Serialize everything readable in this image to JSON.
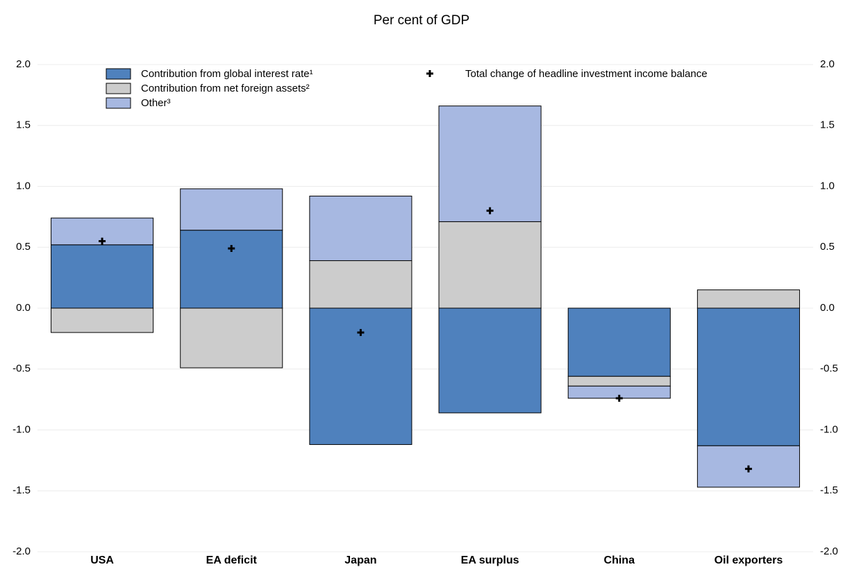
{
  "chart_data": {
    "type": "bar",
    "stacked": true,
    "subtitle": "Per cent of GDP",
    "categories": [
      "USA",
      "EA deficit",
      "Japan",
      "EA surplus",
      "China",
      "Oil exporters"
    ],
    "series": [
      {
        "name": "Contribution from global interest rate¹",
        "color": "#4f81bd",
        "values": [
          0.52,
          0.64,
          -1.12,
          -0.86,
          -0.56,
          -1.13
        ]
      },
      {
        "name": "Contribution from net foreign assets²",
        "color": "#cccccc",
        "values": [
          -0.2,
          -0.49,
          0.39,
          0.71,
          -0.08,
          0.15
        ]
      },
      {
        "name": "Other³",
        "color": "#a7b8e1",
        "values": [
          0.22,
          0.34,
          0.53,
          0.95,
          -0.1,
          -0.34
        ]
      },
      {
        "name": "Total change of headline investment income balance",
        "color": "#000000",
        "mark": "cross",
        "values": [
          0.55,
          0.49,
          -0.2,
          0.8,
          -0.74,
          -1.32
        ]
      }
    ],
    "ylim": [
      -2,
      2
    ],
    "yticks": [
      {
        "value": -2,
        "label": "-2.0"
      },
      -1.5,
      {
        "value": -1,
        "label": "-1.0"
      },
      -0.5,
      {
        "value": 0,
        "label": "0.0"
      },
      0.5,
      {
        "value": 1,
        "label": "1.0"
      },
      1.5,
      {
        "value": 2,
        "label": "2.0"
      }
    ],
    "y2lim": [
      -2,
      2
    ],
    "y2ticks": [
      {
        "value": -2,
        "label": "-2.0"
      },
      -1.5,
      {
        "value": -1,
        "label": "-1.0"
      },
      -0.5,
      {
        "value": 0,
        "label": "0.0"
      },
      0.5,
      {
        "value": 1,
        "label": "1.0"
      },
      1.5,
      {
        "value": 2,
        "label": "2.0"
      }
    ],
    "grid": true
  }
}
